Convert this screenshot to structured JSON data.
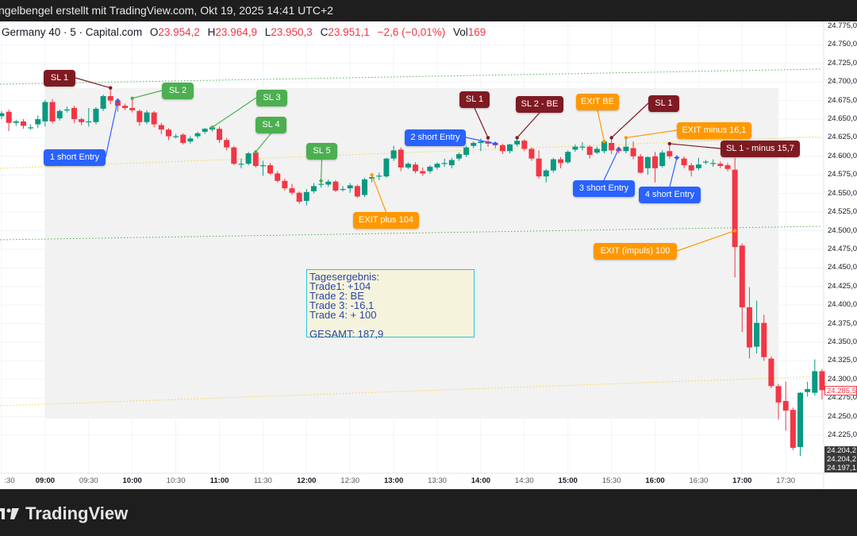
{
  "header": {
    "text": "ngelbengel erstellt mit TradingView.com, Okt 19, 2025 14:41 UTC+2"
  },
  "legend": {
    "symbol": "Germany 40 · 5 · Capital.com",
    "o_label": "O",
    "o": "23.954,2",
    "h_label": "H",
    "h": "23.964,9",
    "l_label": "L",
    "l": "23.950,3",
    "c_label": "C",
    "c": "23.951,1",
    "change": "−2,6 (−0,01%)",
    "vol_label": "Vol",
    "vol": "169"
  },
  "colors": {
    "up": "#089981",
    "down": "#f23645",
    "sl_red": "#7f1a22",
    "sl_green": "#4caf50",
    "entry_blue": "#2962ff",
    "exit_orange": "#ff9800",
    "box_border": "#26c6da",
    "box_fill": "#f5f3dc"
  },
  "result_box": {
    "lines": [
      "Tagesergebnis:",
      "Trade1: +104",
      "Trade 2: BE",
      "Trade 3: -16,1",
      "Trade 4: + 100",
      "",
      "GESAMT: 187,9"
    ]
  },
  "price_axis": {
    "labels": [
      "24.775,0",
      "24.750,0",
      "24.725,0",
      "24.700,0",
      "24.675,0",
      "24.650,0",
      "24.625,0",
      "24.600,0",
      "24.575,0",
      "24.550,0",
      "24.525,0",
      "24.500,0",
      "24.475,0",
      "24.450,0",
      "24.425,0",
      "24.400,0",
      "24.375,0",
      "24.350,0",
      "24.325,0",
      "24.300,0",
      "24.275,0",
      "24.250,0",
      "24.225,0"
    ],
    "current_price": "24.285,5",
    "extra_labels": [
      "24.204,2",
      "24.204,2",
      "24.197,1"
    ]
  },
  "time_axis": {
    "labels": [
      ":30",
      "09:00",
      "09:30",
      "10:00",
      "10:30",
      "11:00",
      "11:30",
      "12:00",
      "12:30",
      "13:00",
      "13:30",
      "14:00",
      "14:30",
      "15:00",
      "15:30",
      "16:00",
      "16:30",
      "17:00",
      "17:30"
    ]
  },
  "logo": {
    "text": "TradingView"
  },
  "chart_data": {
    "type": "candlestick",
    "interval": "5m",
    "y_range": [
      24200,
      24775
    ],
    "grid": true,
    "columns": [
      "time",
      "open",
      "high",
      "low",
      "close"
    ],
    "candles": [
      [
        "08:30",
        24654,
        24661,
        24650,
        24658
      ],
      [
        "08:35",
        24660,
        24663,
        24634,
        24645
      ],
      [
        "08:40",
        24645,
        24649,
        24641,
        24647
      ],
      [
        "08:45",
        24647,
        24650,
        24637,
        24641
      ],
      [
        "08:50",
        24639,
        24643,
        24636,
        24639
      ],
      [
        "08:55",
        24643,
        24655,
        24638,
        24650
      ],
      [
        "09:00",
        24647,
        24676,
        24640,
        24673
      ],
      [
        "09:05",
        24673,
        24677,
        24644,
        24647
      ],
      [
        "09:10",
        24651,
        24663,
        24648,
        24661
      ],
      [
        "09:15",
        24662,
        24667,
        24659,
        24663
      ],
      [
        "09:20",
        24665,
        24668,
        24645,
        24650
      ],
      [
        "09:25",
        24650,
        24652,
        24642,
        24646
      ],
      [
        "09:30",
        24647,
        24665,
        24640,
        24647
      ],
      [
        "09:35",
        24646,
        24666,
        24643,
        24664
      ],
      [
        "09:40",
        24664,
        24683,
        24661,
        24681
      ],
      [
        "09:45",
        24681,
        24692,
        24670,
        24675
      ],
      [
        "09:50",
        24675,
        24678,
        24660,
        24668
      ],
      [
        "09:55",
        24668,
        24671,
        24662,
        24665
      ],
      [
        "10:00",
        24665,
        24678,
        24659,
        24662
      ],
      [
        "10:05",
        24661,
        24663,
        24641,
        24646
      ],
      [
        "10:10",
        24646,
        24662,
        24643,
        24659
      ],
      [
        "10:15",
        24659,
        24661,
        24639,
        24643
      ],
      [
        "10:20",
        24642,
        24645,
        24630,
        24636
      ],
      [
        "10:25",
        24636,
        24638,
        24622,
        24627
      ],
      [
        "10:30",
        24627,
        24630,
        24624,
        24627
      ],
      [
        "10:35",
        24629,
        24631,
        24616,
        24618
      ],
      [
        "10:40",
        24620,
        24627,
        24617,
        24624
      ],
      [
        "10:45",
        24627,
        24633,
        24624,
        24631
      ],
      [
        "10:50",
        24633,
        24638,
        24630,
        24637
      ],
      [
        "10:55",
        24636,
        24641,
        24633,
        24639
      ],
      [
        "11:00",
        24637,
        24640,
        24618,
        24622
      ],
      [
        "11:05",
        24622,
        24625,
        24608,
        24612
      ],
      [
        "11:10",
        24612,
        24614,
        24588,
        24590
      ],
      [
        "11:15",
        24590,
        24597,
        24584,
        24590
      ],
      [
        "11:20",
        24590,
        24606,
        24588,
        24604
      ],
      [
        "11:25",
        24605,
        24608,
        24585,
        24587
      ],
      [
        "11:30",
        24588,
        24594,
        24574,
        24588
      ],
      [
        "11:35",
        24588,
        24591,
        24575,
        24577
      ],
      [
        "11:40",
        24577,
        24580,
        24565,
        24567
      ],
      [
        "11:45",
        24567,
        24570,
        24554,
        24557
      ],
      [
        "11:50",
        24557,
        24563,
        24548,
        24551
      ],
      [
        "11:55",
        24551,
        24553,
        24536,
        24539
      ],
      [
        "12:00",
        24540,
        24556,
        24534,
        24552
      ],
      [
        "12:05",
        24553,
        24564,
        24550,
        24560
      ],
      [
        "12:10",
        24562,
        24567,
        24558,
        24563
      ],
      [
        "12:15",
        24562,
        24569,
        24559,
        24566
      ],
      [
        "12:20",
        24566,
        24568,
        24552,
        24554
      ],
      [
        "12:25",
        24556,
        24560,
        24553,
        24556
      ],
      [
        "12:30",
        24557,
        24564,
        24551,
        24561
      ],
      [
        "12:35",
        24560,
        24562,
        24544,
        24546
      ],
      [
        "12:40",
        24548,
        24571,
        24545,
        24569
      ],
      [
        "12:45",
        24570,
        24575,
        24565,
        24572
      ],
      [
        "12:50",
        24573,
        24578,
        24568,
        24574
      ],
      [
        "12:55",
        24573,
        24598,
        24571,
        24597
      ],
      [
        "13:00",
        24597,
        24614,
        24594,
        24608
      ],
      [
        "13:05",
        24609,
        24612,
        24580,
        24585
      ],
      [
        "13:10",
        24585,
        24592,
        24583,
        24590
      ],
      [
        "13:15",
        24589,
        24592,
        24577,
        24580
      ],
      [
        "13:20",
        24580,
        24585,
        24574,
        24577
      ],
      [
        "13:25",
        24580,
        24588,
        24577,
        24586
      ],
      [
        "13:30",
        24585,
        24592,
        24582,
        24590
      ],
      [
        "13:35",
        24591,
        24597,
        24586,
        24591
      ],
      [
        "13:40",
        24588,
        24598,
        24584,
        24595
      ],
      [
        "13:45",
        24597,
        24605,
        24594,
        24603
      ],
      [
        "13:50",
        24602,
        24614,
        24599,
        24612
      ],
      [
        "13:55",
        24614,
        24620,
        24611,
        24618
      ],
      [
        "14:00",
        24618,
        24624,
        24607,
        24620
      ],
      [
        "14:05",
        24620,
        24625,
        24613,
        24617
      ],
      [
        "14:10",
        24618,
        24620,
        24611,
        24615
      ],
      [
        "14:15",
        24615,
        24617,
        24603,
        24607
      ],
      [
        "14:20",
        24607,
        24617,
        24604,
        24616
      ],
      [
        "14:25",
        24616,
        24625,
        24613,
        24621
      ],
      [
        "14:30",
        24621,
        24623,
        24607,
        24610
      ],
      [
        "14:35",
        24610,
        24612,
        24594,
        24597
      ],
      [
        "14:40",
        24597,
        24608,
        24570,
        24573
      ],
      [
        "14:45",
        24573,
        24583,
        24565,
        24581
      ],
      [
        "14:50",
        24581,
        24598,
        24578,
        24596
      ],
      [
        "14:55",
        24596,
        24599,
        24584,
        24591
      ],
      [
        "15:00",
        24592,
        24608,
        24590,
        24606
      ],
      [
        "15:05",
        24609,
        24616,
        24606,
        24613
      ],
      [
        "15:10",
        24613,
        24619,
        24608,
        24613
      ],
      [
        "15:15",
        24613,
        24615,
        24597,
        24602
      ],
      [
        "15:20",
        24605,
        24613,
        24603,
        24610
      ],
      [
        "15:25",
        24607,
        24622,
        24604,
        24620
      ],
      [
        "15:30",
        24618,
        24625,
        24603,
        24608
      ],
      [
        "15:35",
        24610,
        24613,
        24604,
        24607
      ],
      [
        "15:40",
        24607,
        24625,
        24604,
        24613
      ],
      [
        "15:45",
        24611,
        24620,
        24596,
        24600
      ],
      [
        "15:50",
        24600,
        24603,
        24577,
        24578
      ],
      [
        "15:55",
        24584,
        24600,
        24575,
        24599
      ],
      [
        "16:00",
        24600,
        24606,
        24565,
        24584
      ],
      [
        "16:05",
        24587,
        24608,
        24585,
        24605
      ],
      [
        "16:10",
        24607,
        24617,
        24597,
        24600
      ],
      [
        "16:15",
        24599,
        24602,
        24595,
        24598
      ],
      [
        "16:20",
        24597,
        24600,
        24584,
        24588
      ],
      [
        "16:25",
        24588,
        24591,
        24573,
        24581
      ],
      [
        "16:30",
        24584,
        24598,
        24581,
        24589
      ],
      [
        "16:35",
        24592,
        24595,
        24589,
        24593
      ],
      [
        "16:40",
        24591,
        24596,
        24586,
        24591
      ],
      [
        "16:45",
        24590,
        24593,
        24584,
        24587
      ],
      [
        "16:50",
        24588,
        24591,
        24580,
        24583
      ],
      [
        "16:55",
        24582,
        24598,
        24437,
        24478
      ],
      [
        "17:00",
        24480,
        24483,
        24364,
        24397
      ],
      [
        "17:05",
        24397,
        24424,
        24328,
        24343
      ],
      [
        "17:10",
        24344,
        24406,
        24335,
        24376
      ],
      [
        "17:15",
        24376,
        24387,
        24325,
        24330
      ],
      [
        "17:20",
        24328,
        24331,
        24288,
        24291
      ],
      [
        "17:25",
        24291,
        24294,
        24246,
        24269
      ],
      [
        "17:30",
        24271,
        24297,
        24231,
        24258
      ],
      [
        "17:35",
        24259,
        24262,
        24205,
        24208
      ],
      [
        "17:40",
        24209,
        24283,
        24197,
        24282
      ],
      [
        "17:45",
        24283,
        24297,
        24277,
        24287
      ],
      [
        "17:50",
        24282,
        24327,
        24278,
        24311
      ],
      [
        "17:55",
        24311,
        24314,
        24273,
        24285.5
      ]
    ],
    "annotations": [
      {
        "label": "SL 1",
        "kind": "sl_red",
        "time": "09:45",
        "price": 24692
      },
      {
        "label": "SL 2",
        "kind": "sl_green",
        "time": "10:00",
        "price": 24678
      },
      {
        "label": "1 short Entry",
        "kind": "entry_blue",
        "time": "09:50",
        "price": 24675
      },
      {
        "label": "SL 3",
        "kind": "sl_green",
        "time": "10:55",
        "price": 24639
      },
      {
        "label": "SL 4",
        "kind": "sl_green",
        "time": "11:25",
        "price": 24606
      },
      {
        "label": "SL 5",
        "kind": "sl_green",
        "time": "12:10",
        "price": 24567
      },
      {
        "label": "EXIT plus 104",
        "kind": "exit_orange",
        "time": "12:45",
        "price": 24575
      },
      {
        "label": "2 short Entry",
        "kind": "entry_blue",
        "time": "14:10",
        "price": 24617
      },
      {
        "label": "SL 1",
        "kind": "sl_red",
        "time": "14:05",
        "price": 24625
      },
      {
        "label": "SL 2 - BE",
        "kind": "sl_red",
        "time": "14:25",
        "price": 24625
      },
      {
        "label": "EXIT BE",
        "kind": "exit_orange",
        "time": "15:25",
        "price": 24620
      },
      {
        "label": "SL 1",
        "kind": "sl_red",
        "time": "15:30",
        "price": 24625
      },
      {
        "label": "EXIT minus 16,1",
        "kind": "exit_orange",
        "time": "15:40",
        "price": 24625
      },
      {
        "label": "SL 1 - minus 15,7",
        "kind": "sl_red",
        "time": "16:10",
        "price": 24617
      },
      {
        "label": "3 short Entry",
        "kind": "entry_blue",
        "time": "15:35",
        "price": 24610
      },
      {
        "label": "4 short Entry",
        "kind": "entry_blue",
        "time": "16:15",
        "price": 24598
      },
      {
        "label": "EXIT  (impuls) 100",
        "kind": "exit_orange",
        "time": "16:55",
        "price": 24500
      }
    ]
  }
}
